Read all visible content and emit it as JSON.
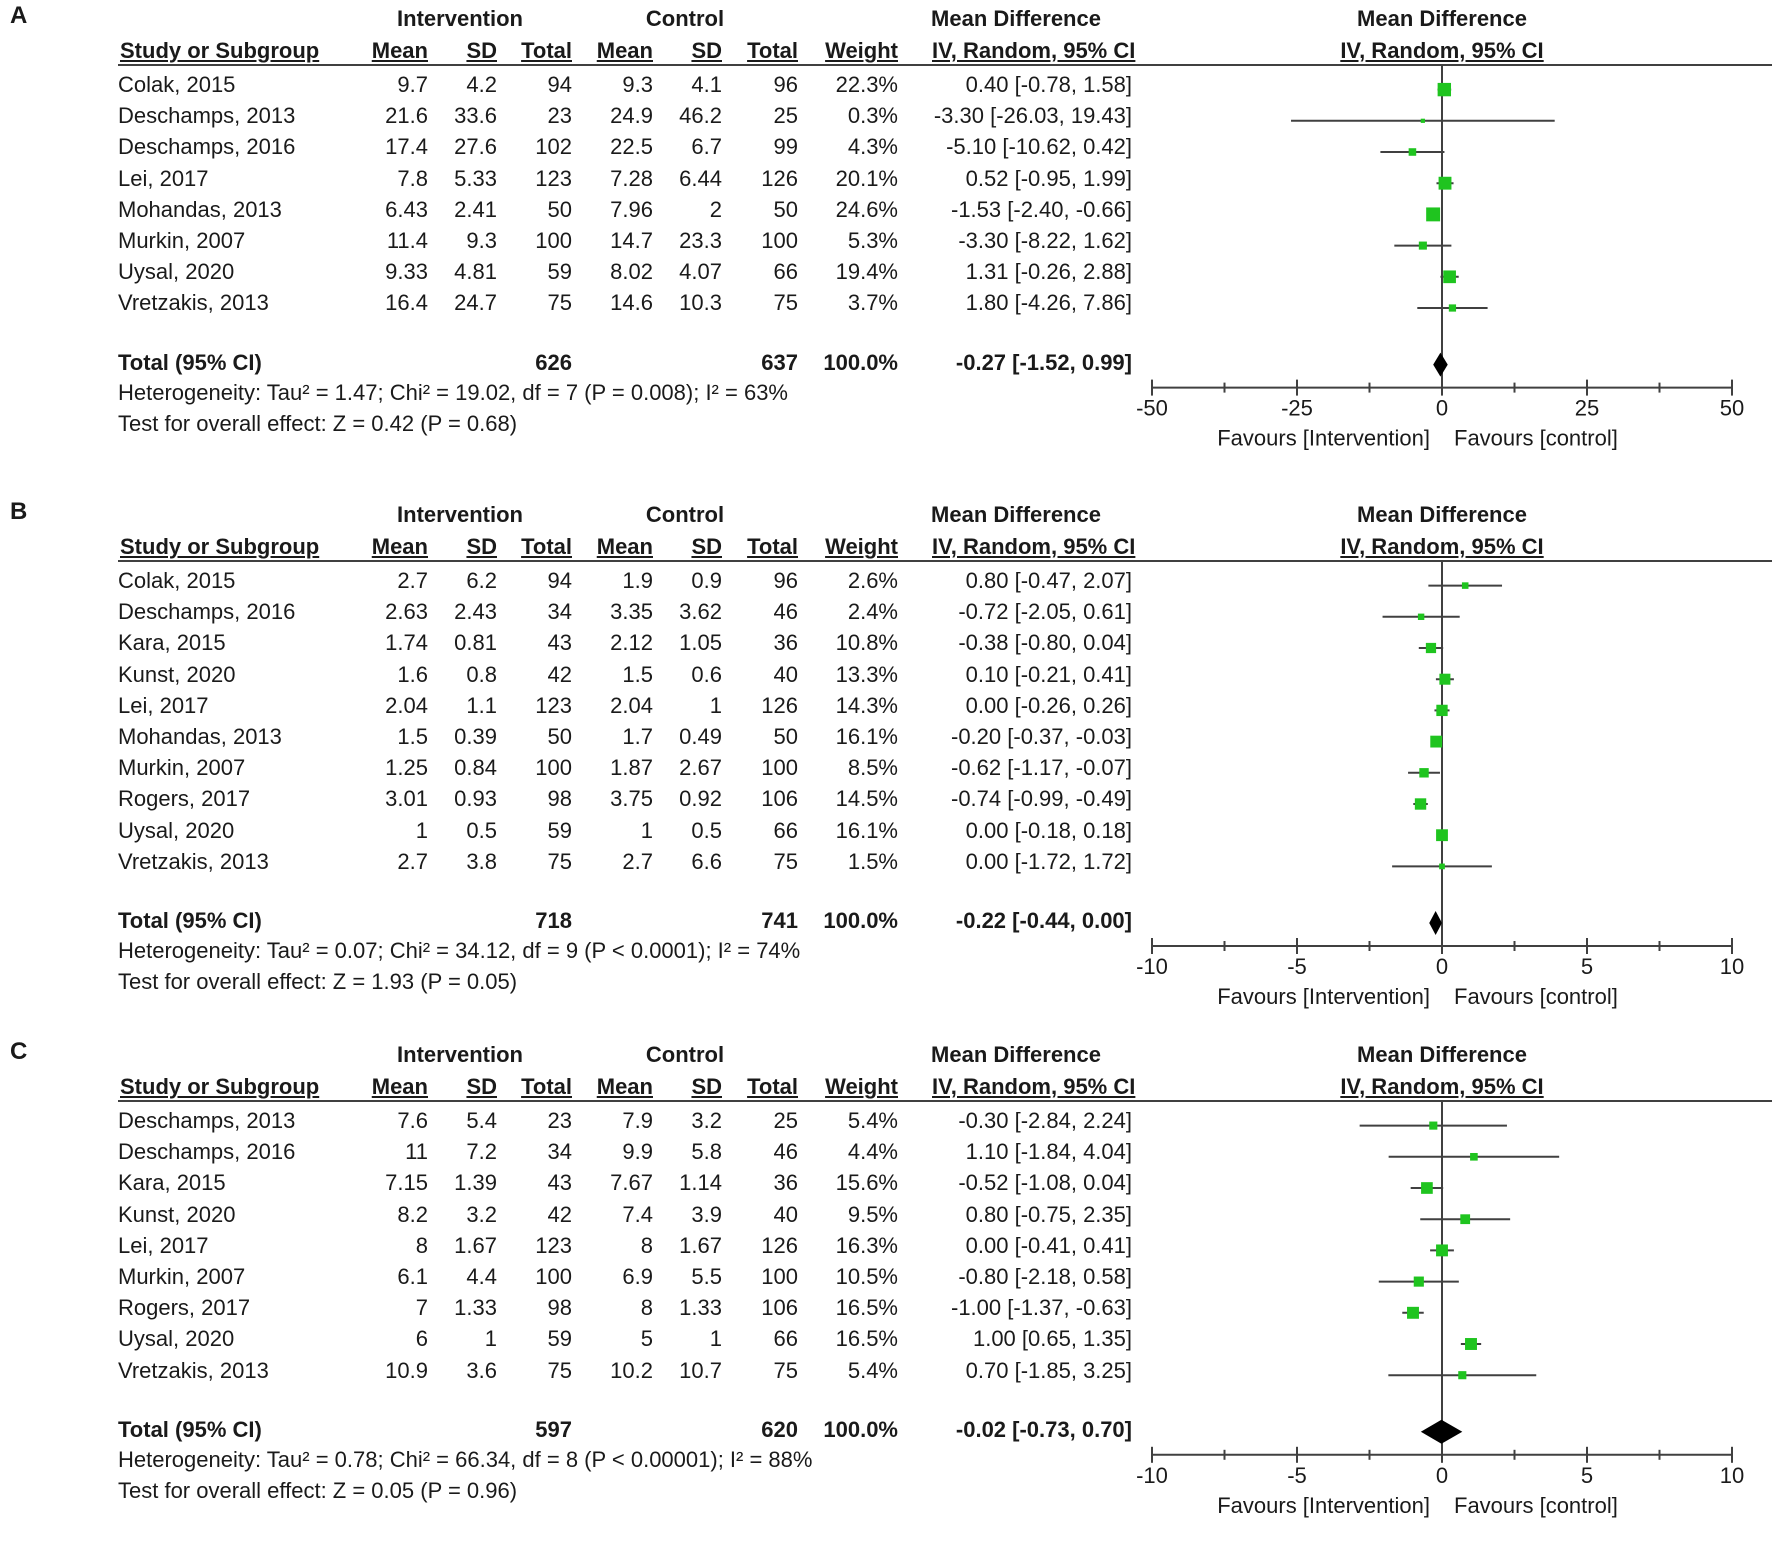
{
  "columns": {
    "intervention": "Intervention",
    "control": "Control",
    "md_group": "Mean Difference",
    "study": "Study or Subgroup",
    "mean": "Mean",
    "sd": "SD",
    "total": "Total",
    "weight": "Weight",
    "md_method": "IV, Random, 95% CI"
  },
  "chart_data": [
    {
      "type": "forest",
      "panel": "A",
      "xlim": [
        -50,
        50
      ],
      "xticks": [
        "-50",
        "-25",
        "0",
        "25",
        "50"
      ],
      "xticks_values": [
        -50,
        -25,
        0,
        25,
        50
      ],
      "favours_left": "Favours [Intervention]",
      "favours_right": "Favours [control]",
      "studies": [
        {
          "name": "Colak, 2015",
          "i_mean": "9.7",
          "i_sd": "4.2",
          "i_total": "94",
          "c_mean": "9.3",
          "c_sd": "4.1",
          "c_total": "96",
          "weight": "22.3%",
          "ci": "0.40 [-0.78, 1.58]",
          "md": 0.4,
          "lo": -0.78,
          "hi": 1.58,
          "w": 22.3
        },
        {
          "name": "Deschamps, 2013",
          "i_mean": "21.6",
          "i_sd": "33.6",
          "i_total": "23",
          "c_mean": "24.9",
          "c_sd": "46.2",
          "c_total": "25",
          "weight": "0.3%",
          "ci": "-3.30 [-26.03, 19.43]",
          "md": -3.3,
          "lo": -26.03,
          "hi": 19.43,
          "w": 0.3
        },
        {
          "name": "Deschamps, 2016",
          "i_mean": "17.4",
          "i_sd": "27.6",
          "i_total": "102",
          "c_mean": "22.5",
          "c_sd": "6.7",
          "c_total": "99",
          "weight": "4.3%",
          "ci": "-5.10 [-10.62, 0.42]",
          "md": -5.1,
          "lo": -10.62,
          "hi": 0.42,
          "w": 4.3
        },
        {
          "name": "Lei, 2017",
          "i_mean": "7.8",
          "i_sd": "5.33",
          "i_total": "123",
          "c_mean": "7.28",
          "c_sd": "6.44",
          "c_total": "126",
          "weight": "20.1%",
          "ci": "0.52 [-0.95, 1.99]",
          "md": 0.52,
          "lo": -0.95,
          "hi": 1.99,
          "w": 20.1
        },
        {
          "name": "Mohandas, 2013",
          "i_mean": "6.43",
          "i_sd": "2.41",
          "i_total": "50",
          "c_mean": "7.96",
          "c_sd": "2",
          "c_total": "50",
          "weight": "24.6%",
          "ci": "-1.53 [-2.40, -0.66]",
          "md": -1.53,
          "lo": -2.4,
          "hi": -0.66,
          "w": 24.6
        },
        {
          "name": "Murkin, 2007",
          "i_mean": "11.4",
          "i_sd": "9.3",
          "i_total": "100",
          "c_mean": "14.7",
          "c_sd": "23.3",
          "c_total": "100",
          "weight": "5.3%",
          "ci": "-3.30 [-8.22, 1.62]",
          "md": -3.3,
          "lo": -8.22,
          "hi": 1.62,
          "w": 5.3
        },
        {
          "name": "Uysal, 2020",
          "i_mean": "9.33",
          "i_sd": "4.81",
          "i_total": "59",
          "c_mean": "8.02",
          "c_sd": "4.07",
          "c_total": "66",
          "weight": "19.4%",
          "ci": "1.31 [-0.26, 2.88]",
          "md": 1.31,
          "lo": -0.26,
          "hi": 2.88,
          "w": 19.4
        },
        {
          "name": "Vretzakis, 2013",
          "i_mean": "16.4",
          "i_sd": "24.7",
          "i_total": "75",
          "c_mean": "14.6",
          "c_sd": "10.3",
          "c_total": "75",
          "weight": "3.7%",
          "ci": "1.80 [-4.26, 7.86]",
          "md": 1.8,
          "lo": -4.26,
          "hi": 7.86,
          "w": 3.7
        }
      ],
      "total": {
        "label": "Total (95% CI)",
        "i_total": "626",
        "c_total": "637",
        "weight": "100.0%",
        "ci": "-0.27 [-1.52, 0.99]",
        "md": -0.27,
        "lo": -1.52,
        "hi": 0.99
      },
      "heterogeneity": "Heterogeneity: Tau² = 1.47; Chi² = 19.02, df = 7 (P = 0.008); I² = 63%",
      "overall": "Test for overall effect: Z = 0.42 (P = 0.68)"
    },
    {
      "type": "forest",
      "panel": "B",
      "xlim": [
        -10,
        10
      ],
      "xticks": [
        "-10",
        "-5",
        "0",
        "5",
        "10"
      ],
      "xticks_values": [
        -10,
        -5,
        0,
        5,
        10
      ],
      "favours_left": "Favours [Intervention]",
      "favours_right": "Favours [control]",
      "studies": [
        {
          "name": "Colak, 2015",
          "i_mean": "2.7",
          "i_sd": "6.2",
          "i_total": "94",
          "c_mean": "1.9",
          "c_sd": "0.9",
          "c_total": "96",
          "weight": "2.6%",
          "ci": "0.80 [-0.47, 2.07]",
          "md": 0.8,
          "lo": -0.47,
          "hi": 2.07,
          "w": 2.6
        },
        {
          "name": "Deschamps, 2016",
          "i_mean": "2.63",
          "i_sd": "2.43",
          "i_total": "34",
          "c_mean": "3.35",
          "c_sd": "3.62",
          "c_total": "46",
          "weight": "2.4%",
          "ci": "-0.72 [-2.05, 0.61]",
          "md": -0.72,
          "lo": -2.05,
          "hi": 0.61,
          "w": 2.4
        },
        {
          "name": "Kara, 2015",
          "i_mean": "1.74",
          "i_sd": "0.81",
          "i_total": "43",
          "c_mean": "2.12",
          "c_sd": "1.05",
          "c_total": "36",
          "weight": "10.8%",
          "ci": "-0.38 [-0.80, 0.04]",
          "md": -0.38,
          "lo": -0.8,
          "hi": 0.04,
          "w": 10.8
        },
        {
          "name": "Kunst, 2020",
          "i_mean": "1.6",
          "i_sd": "0.8",
          "i_total": "42",
          "c_mean": "1.5",
          "c_sd": "0.6",
          "c_total": "40",
          "weight": "13.3%",
          "ci": "0.10 [-0.21, 0.41]",
          "md": 0.1,
          "lo": -0.21,
          "hi": 0.41,
          "w": 13.3
        },
        {
          "name": "Lei, 2017",
          "i_mean": "2.04",
          "i_sd": "1.1",
          "i_total": "123",
          "c_mean": "2.04",
          "c_sd": "1",
          "c_total": "126",
          "weight": "14.3%",
          "ci": "0.00 [-0.26, 0.26]",
          "md": 0.0,
          "lo": -0.26,
          "hi": 0.26,
          "w": 14.3
        },
        {
          "name": "Mohandas, 2013",
          "i_mean": "1.5",
          "i_sd": "0.39",
          "i_total": "50",
          "c_mean": "1.7",
          "c_sd": "0.49",
          "c_total": "50",
          "weight": "16.1%",
          "ci": "-0.20 [-0.37, -0.03]",
          "md": -0.2,
          "lo": -0.37,
          "hi": -0.03,
          "w": 16.1
        },
        {
          "name": "Murkin, 2007",
          "i_mean": "1.25",
          "i_sd": "0.84",
          "i_total": "100",
          "c_mean": "1.87",
          "c_sd": "2.67",
          "c_total": "100",
          "weight": "8.5%",
          "ci": "-0.62 [-1.17, -0.07]",
          "md": -0.62,
          "lo": -1.17,
          "hi": -0.07,
          "w": 8.5
        },
        {
          "name": "Rogers, 2017",
          "i_mean": "3.01",
          "i_sd": "0.93",
          "i_total": "98",
          "c_mean": "3.75",
          "c_sd": "0.92",
          "c_total": "106",
          "weight": "14.5%",
          "ci": "-0.74 [-0.99, -0.49]",
          "md": -0.74,
          "lo": -0.99,
          "hi": -0.49,
          "w": 14.5
        },
        {
          "name": "Uysal, 2020",
          "i_mean": "1",
          "i_sd": "0.5",
          "i_total": "59",
          "c_mean": "1",
          "c_sd": "0.5",
          "c_total": "66",
          "weight": "16.1%",
          "ci": "0.00 [-0.18, 0.18]",
          "md": 0.0,
          "lo": -0.18,
          "hi": 0.18,
          "w": 16.1
        },
        {
          "name": "Vretzakis, 2013",
          "i_mean": "2.7",
          "i_sd": "3.8",
          "i_total": "75",
          "c_mean": "2.7",
          "c_sd": "6.6",
          "c_total": "75",
          "weight": "1.5%",
          "ci": "0.00 [-1.72, 1.72]",
          "md": 0.0,
          "lo": -1.72,
          "hi": 1.72,
          "w": 1.5
        }
      ],
      "total": {
        "label": "Total (95% CI)",
        "i_total": "718",
        "c_total": "741",
        "weight": "100.0%",
        "ci": "-0.22 [-0.44, 0.00]",
        "md": -0.22,
        "lo": -0.44,
        "hi": 0.0
      },
      "heterogeneity": "Heterogeneity: Tau² = 0.07; Chi² = 34.12, df = 9 (P < 0.0001); I² = 74%",
      "overall": "Test for overall effect: Z = 1.93 (P = 0.05)"
    },
    {
      "type": "forest",
      "panel": "C",
      "xlim": [
        -10,
        10
      ],
      "xticks": [
        "-10",
        "-5",
        "0",
        "5",
        "10"
      ],
      "xticks_values": [
        -10,
        -5,
        0,
        5,
        10
      ],
      "favours_left": "Favours [Intervention]",
      "favours_right": "Favours [control]",
      "studies": [
        {
          "name": "Deschamps, 2013",
          "i_mean": "7.6",
          "i_sd": "5.4",
          "i_total": "23",
          "c_mean": "7.9",
          "c_sd": "3.2",
          "c_total": "25",
          "weight": "5.4%",
          "ci": "-0.30 [-2.84, 2.24]",
          "md": -0.3,
          "lo": -2.84,
          "hi": 2.24,
          "w": 5.4
        },
        {
          "name": "Deschamps, 2016",
          "i_mean": "11",
          "i_sd": "7.2",
          "i_total": "34",
          "c_mean": "9.9",
          "c_sd": "5.8",
          "c_total": "46",
          "weight": "4.4%",
          "ci": "1.10 [-1.84, 4.04]",
          "md": 1.1,
          "lo": -1.84,
          "hi": 4.04,
          "w": 4.4
        },
        {
          "name": "Kara, 2015",
          "i_mean": "7.15",
          "i_sd": "1.39",
          "i_total": "43",
          "c_mean": "7.67",
          "c_sd": "1.14",
          "c_total": "36",
          "weight": "15.6%",
          "ci": "-0.52 [-1.08, 0.04]",
          "md": -0.52,
          "lo": -1.08,
          "hi": 0.04,
          "w": 15.6
        },
        {
          "name": "Kunst, 2020",
          "i_mean": "8.2",
          "i_sd": "3.2",
          "i_total": "42",
          "c_mean": "7.4",
          "c_sd": "3.9",
          "c_total": "40",
          "weight": "9.5%",
          "ci": "0.80 [-0.75, 2.35]",
          "md": 0.8,
          "lo": -0.75,
          "hi": 2.35,
          "w": 9.5
        },
        {
          "name": "Lei, 2017",
          "i_mean": "8",
          "i_sd": "1.67",
          "i_total": "123",
          "c_mean": "8",
          "c_sd": "1.67",
          "c_total": "126",
          "weight": "16.3%",
          "ci": "0.00 [-0.41, 0.41]",
          "md": 0.0,
          "lo": -0.41,
          "hi": 0.41,
          "w": 16.3
        },
        {
          "name": "Murkin, 2007",
          "i_mean": "6.1",
          "i_sd": "4.4",
          "i_total": "100",
          "c_mean": "6.9",
          "c_sd": "5.5",
          "c_total": "100",
          "weight": "10.5%",
          "ci": "-0.80 [-2.18, 0.58]",
          "md": -0.8,
          "lo": -2.18,
          "hi": 0.58,
          "w": 10.5
        },
        {
          "name": "Rogers, 2017",
          "i_mean": "7",
          "i_sd": "1.33",
          "i_total": "98",
          "c_mean": "8",
          "c_sd": "1.33",
          "c_total": "106",
          "weight": "16.5%",
          "ci": "-1.00 [-1.37, -0.63]",
          "md": -1.0,
          "lo": -1.37,
          "hi": -0.63,
          "w": 16.5
        },
        {
          "name": "Uysal, 2020",
          "i_mean": "6",
          "i_sd": "1",
          "i_total": "59",
          "c_mean": "5",
          "c_sd": "1",
          "c_total": "66",
          "weight": "16.5%",
          "ci": "1.00 [0.65, 1.35]",
          "md": 1.0,
          "lo": 0.65,
          "hi": 1.35,
          "w": 16.5
        },
        {
          "name": "Vretzakis, 2013",
          "i_mean": "10.9",
          "i_sd": "3.6",
          "i_total": "75",
          "c_mean": "10.2",
          "c_sd": "10.7",
          "c_total": "75",
          "weight": "5.4%",
          "ci": "0.70 [-1.85, 3.25]",
          "md": 0.7,
          "lo": -1.85,
          "hi": 3.25,
          "w": 5.4
        }
      ],
      "total": {
        "label": "Total (95% CI)",
        "i_total": "597",
        "c_total": "620",
        "weight": "100.0%",
        "ci": "-0.02 [-0.73, 0.70]",
        "md": -0.02,
        "lo": -0.73,
        "hi": 0.7
      },
      "heterogeneity": "Heterogeneity: Tau² = 0.78; Chi² = 66.34, df = 8 (P < 0.00001); I² = 88%",
      "overall": "Test for overall effect: Z = 0.05 (P = 0.96)"
    }
  ],
  "colors": {
    "marker": "#1fc41f",
    "diamond": "#000000",
    "line": "#404040"
  }
}
